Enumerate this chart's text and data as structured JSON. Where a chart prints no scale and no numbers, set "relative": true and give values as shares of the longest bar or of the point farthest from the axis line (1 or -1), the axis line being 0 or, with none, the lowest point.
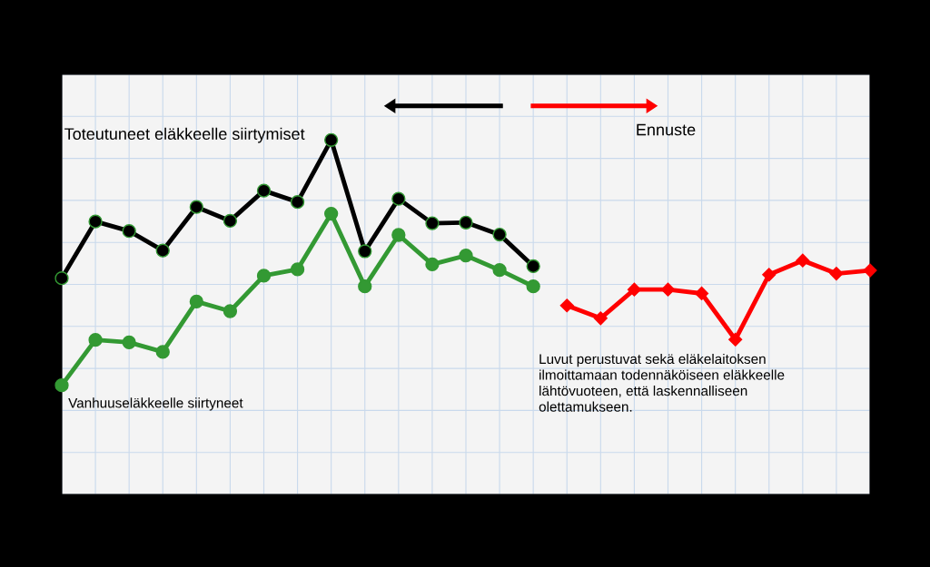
{
  "chart_data": {
    "type": "line",
    "relative": true,
    "grid": true,
    "legend": false,
    "line_style": "solid",
    "categories": [
      null,
      null,
      null,
      null,
      null,
      null,
      null,
      null,
      null,
      null,
      null,
      null,
      null,
      null,
      null,
      null,
      null,
      null,
      null,
      null,
      null,
      null,
      null,
      null,
      null
    ],
    "series": [
      {
        "name": "Toteutuneet eläkkeelle siirtymiset",
        "color": "#000000",
        "marker": "circle",
        "values": [
          0.61,
          0.77,
          0.743,
          0.688,
          0.811,
          0.772,
          0.857,
          0.825,
          1.0,
          0.686,
          0.834,
          0.765,
          0.767,
          0.733,
          0.644,
          null,
          null,
          null,
          null,
          null,
          null,
          null,
          null,
          null,
          null
        ]
      },
      {
        "name": "Vanhuuseläkkeelle siirtyneet",
        "color": "#339933",
        "marker": "circle",
        "values": [
          0.308,
          0.436,
          0.429,
          0.402,
          0.544,
          0.517,
          0.617,
          0.635,
          0.792,
          0.587,
          0.732,
          0.649,
          0.674,
          0.633,
          0.587,
          null,
          null,
          null,
          null,
          null,
          null,
          null,
          null,
          null,
          null
        ]
      },
      {
        "color": "#ff0000",
        "marker": "diamond",
        "values": [
          null,
          null,
          null,
          null,
          null,
          null,
          null,
          null,
          null,
          null,
          null,
          null,
          null,
          null,
          null,
          0.533,
          0.497,
          0.578,
          0.578,
          0.567,
          0.437,
          0.62,
          0.66,
          0.623,
          0.632
        ]
      }
    ],
    "annotations": [
      "Ennuste",
      "Luvut perustuvat sekä eläkelaitoksen\nilmoittamaan todennäköiseen eläkkeelle\nlähtövuoteen, että laskennalliseen\nolettamukseen."
    ]
  }
}
